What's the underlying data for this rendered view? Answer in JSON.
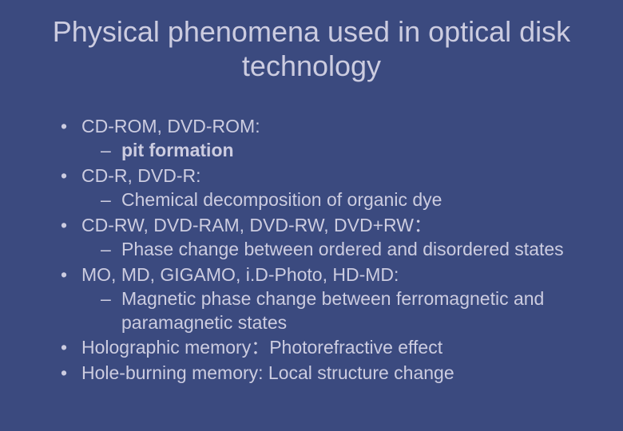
{
  "colors": {
    "background": "#3b4a7f",
    "text": "#cccce0",
    "title": "#cccce0"
  },
  "typography": {
    "font_family": "Arial",
    "title_fontsize": 36,
    "body_fontsize": 23
  },
  "title": "Physical phenomena used in optical disk technology",
  "items": [
    {
      "label": "CD-ROM, DVD-ROM:",
      "sub": [
        {
          "label": "pit formation",
          "bold": true
        }
      ]
    },
    {
      "label": "CD-R, DVD-R:",
      "sub": [
        {
          "label": "Chemical decomposition of organic dye",
          "bold": false
        }
      ]
    },
    {
      "label": "CD-RW, DVD-RAM, DVD-RW, DVD+RW：",
      "sub": [
        {
          "label": "Phase change between ordered and disordered states",
          "bold": false
        }
      ]
    },
    {
      "label": "MO, MD, GIGAMO, i.D-Photo, HD-MD:",
      "sub": [
        {
          "label": "Magnetic phase change between ferromagnetic and paramagnetic states",
          "bold": false
        }
      ]
    },
    {
      "label": "Holographic memory：Photorefractive effect",
      "sub": []
    },
    {
      "label": "Hole-burning memory: Local structure change",
      "sub": []
    }
  ]
}
